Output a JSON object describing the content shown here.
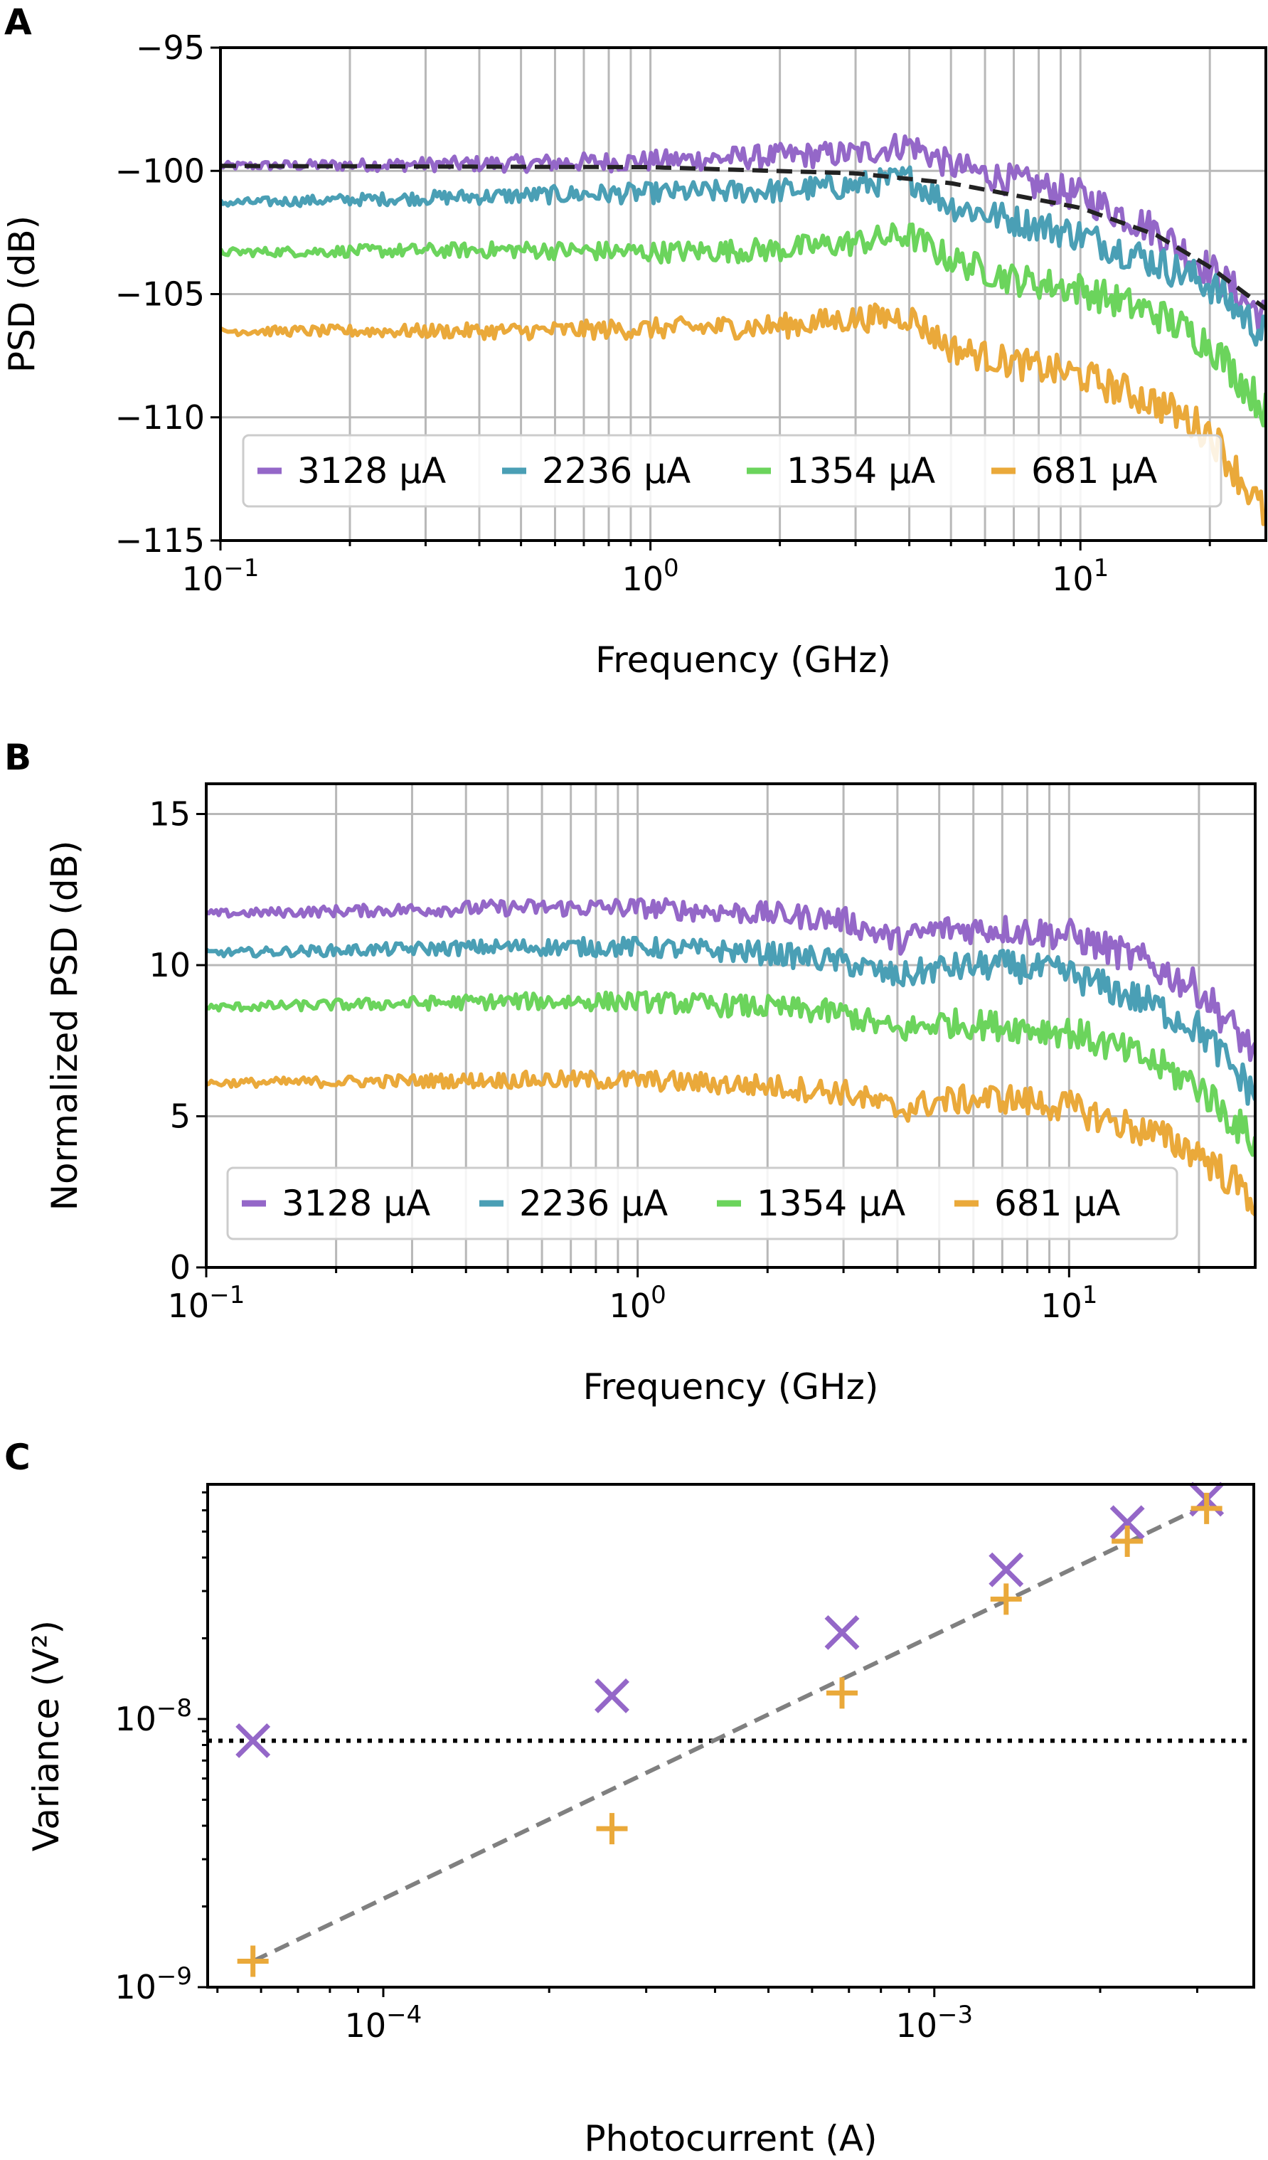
{
  "chart_data": [
    {
      "panel": "A",
      "type": "line",
      "xlabel": "Frequency (GHz)",
      "ylabel": "PSD (dB)",
      "xscale": "log",
      "xlim": [
        0.1,
        27
      ],
      "ylim": [
        -115,
        -95
      ],
      "yticks": [
        "−95",
        "−100",
        "−105",
        "−110",
        "−115"
      ],
      "xticks": [
        {
          "base": "10",
          "exp": "−1"
        },
        {
          "base": "10",
          "exp": "0"
        },
        {
          "base": "10",
          "exp": "1"
        }
      ],
      "grid": true,
      "legend_position": "bottom",
      "legend_columns": 4,
      "series": [
        {
          "name": "3128 µA",
          "color": "#9467c8",
          "values": [
            [
              0.1,
              -99.8
            ],
            [
              0.5,
              -99.7
            ],
            [
              1,
              -99.6
            ],
            [
              2,
              -99.4
            ],
            [
              3,
              -99.3
            ],
            [
              4,
              -98.9
            ],
            [
              5,
              -99.8
            ],
            [
              7,
              -100.4
            ],
            [
              10,
              -101.0
            ],
            [
              15,
              -102.4
            ],
            [
              20,
              -104.0
            ],
            [
              27,
              -106.0
            ]
          ]
        },
        {
          "name": "2236 µA",
          "color": "#4a9fb5",
          "values": [
            [
              0.1,
              -101.3
            ],
            [
              0.5,
              -101.0
            ],
            [
              1,
              -100.9
            ],
            [
              2,
              -100.8
            ],
            [
              3,
              -100.6
            ],
            [
              4,
              -100.3
            ],
            [
              5,
              -101.4
            ],
            [
              7,
              -102.0
            ],
            [
              10,
              -102.6
            ],
            [
              15,
              -103.7
            ],
            [
              20,
              -104.6
            ],
            [
              27,
              -106.7
            ]
          ]
        },
        {
          "name": "1354 µA",
          "color": "#6bd45c",
          "values": [
            [
              0.1,
              -103.3
            ],
            [
              0.5,
              -103.2
            ],
            [
              1,
              -103.3
            ],
            [
              2,
              -103.2
            ],
            [
              3,
              -102.9
            ],
            [
              4,
              -102.6
            ],
            [
              5,
              -103.6
            ],
            [
              7,
              -104.4
            ],
            [
              10,
              -104.8
            ],
            [
              15,
              -105.8
            ],
            [
              20,
              -107.0
            ],
            [
              27,
              -109.7
            ]
          ]
        },
        {
          "name": "681 µA",
          "color": "#eaa93a",
          "values": [
            [
              0.1,
              -106.5
            ],
            [
              0.5,
              -106.5
            ],
            [
              1,
              -106.4
            ],
            [
              2,
              -106.3
            ],
            [
              3,
              -106.0
            ],
            [
              4,
              -105.9
            ],
            [
              5,
              -107.2
            ],
            [
              7,
              -107.8
            ],
            [
              10,
              -108.3
            ],
            [
              15,
              -109.4
            ],
            [
              20,
              -110.6
            ],
            [
              27,
              -114.0
            ]
          ]
        }
      ],
      "fit": {
        "style": "dashed",
        "color": "#222222",
        "values": [
          [
            0.1,
            -99.8
          ],
          [
            1,
            -99.85
          ],
          [
            3,
            -100.1
          ],
          [
            5,
            -100.5
          ],
          [
            10,
            -101.5
          ],
          [
            15,
            -102.6
          ],
          [
            20,
            -103.9
          ],
          [
            27,
            -105.6
          ]
        ]
      }
    },
    {
      "panel": "B",
      "type": "line",
      "xlabel": "Frequency (GHz)",
      "ylabel": "Normalized PSD (dB)",
      "xscale": "log",
      "xlim": [
        0.1,
        27
      ],
      "ylim": [
        0,
        16
      ],
      "yticks": [
        "15",
        "10",
        "5",
        "0"
      ],
      "xticks": [
        {
          "base": "10",
          "exp": "−1"
        },
        {
          "base": "10",
          "exp": "0"
        },
        {
          "base": "10",
          "exp": "1"
        }
      ],
      "grid": true,
      "legend_position": "bottom",
      "legend_columns": 4,
      "series": [
        {
          "name": "3128 µA",
          "color": "#9467c8",
          "values": [
            [
              0.1,
              11.7
            ],
            [
              0.5,
              11.9
            ],
            [
              1,
              11.9
            ],
            [
              2,
              11.7
            ],
            [
              3,
              11.5
            ],
            [
              4,
              10.8
            ],
            [
              5,
              11.2
            ],
            [
              7,
              11.2
            ],
            [
              10,
              11.0
            ],
            [
              15,
              10.1
            ],
            [
              20,
              9.2
            ],
            [
              27,
              7.1
            ]
          ]
        },
        {
          "name": "2236 µA",
          "color": "#4a9fb5",
          "values": [
            [
              0.1,
              10.4
            ],
            [
              0.5,
              10.6
            ],
            [
              1,
              10.6
            ],
            [
              2,
              10.4
            ],
            [
              3,
              10.1
            ],
            [
              4,
              9.6
            ],
            [
              5,
              9.9
            ],
            [
              7,
              10.0
            ],
            [
              10,
              9.7
            ],
            [
              15,
              8.8
            ],
            [
              20,
              7.9
            ],
            [
              27,
              5.7
            ]
          ]
        },
        {
          "name": "1354 µA",
          "color": "#6bd45c",
          "values": [
            [
              0.1,
              8.6
            ],
            [
              0.5,
              8.8
            ],
            [
              1,
              8.8
            ],
            [
              2,
              8.6
            ],
            [
              3,
              8.4
            ],
            [
              4,
              7.8
            ],
            [
              5,
              8.1
            ],
            [
              7,
              8.0
            ],
            [
              10,
              7.8
            ],
            [
              15,
              6.9
            ],
            [
              20,
              6.0
            ],
            [
              27,
              4.1
            ]
          ]
        },
        {
          "name": "681 µA",
          "color": "#eaa93a",
          "values": [
            [
              0.1,
              6.1
            ],
            [
              0.5,
              6.2
            ],
            [
              1,
              6.2
            ],
            [
              2,
              6.0
            ],
            [
              3,
              5.8
            ],
            [
              4,
              5.2
            ],
            [
              5,
              5.5
            ],
            [
              7,
              5.6
            ],
            [
              10,
              5.3
            ],
            [
              15,
              4.5
            ],
            [
              20,
              3.8
            ],
            [
              27,
              2.2
            ]
          ]
        }
      ]
    },
    {
      "panel": "C",
      "type": "scatter",
      "xlabel": "Photocurrent (A)",
      "ylabel": "Variance (V²)",
      "xscale": "log",
      "yscale": "log",
      "xlim": [
        4.8e-05,
        0.0038
      ],
      "ylim": [
        1e-09,
        7.5e-08
      ],
      "xticks": [
        {
          "base": "10",
          "exp": "−4"
        },
        {
          "base": "10",
          "exp": "−3"
        }
      ],
      "yticks": [
        {
          "base": "10",
          "exp": "−8"
        },
        {
          "base": "10",
          "exp": "−9"
        }
      ],
      "grid": false,
      "series": [
        {
          "marker": "x",
          "color": "#9467c8",
          "x": [
            5.8e-05,
            0.00026,
            0.00068,
            0.00135,
            0.00224,
            0.00312
          ],
          "y": [
            8.3e-09,
            1.22e-08,
            2.1e-08,
            3.6e-08,
            5.4e-08,
            6.6e-08
          ]
        },
        {
          "marker": "+",
          "color": "#eaa93a",
          "x": [
            5.8e-05,
            0.00026,
            0.00068,
            0.00135,
            0.00224,
            0.00312
          ],
          "y": [
            1.25e-09,
            3.9e-09,
            1.25e-08,
            2.8e-08,
            4.6e-08,
            6.1e-08
          ]
        }
      ],
      "dashed_fit": {
        "color": "#808080",
        "x": [
          5.8e-05,
          0.00312
        ],
        "y": [
          1.25e-09,
          6.3e-08
        ]
      },
      "dotted_level": {
        "color": "#000000",
        "y": 8.3e-09
      }
    }
  ],
  "panel_letters": [
    "A",
    "B",
    "C"
  ]
}
